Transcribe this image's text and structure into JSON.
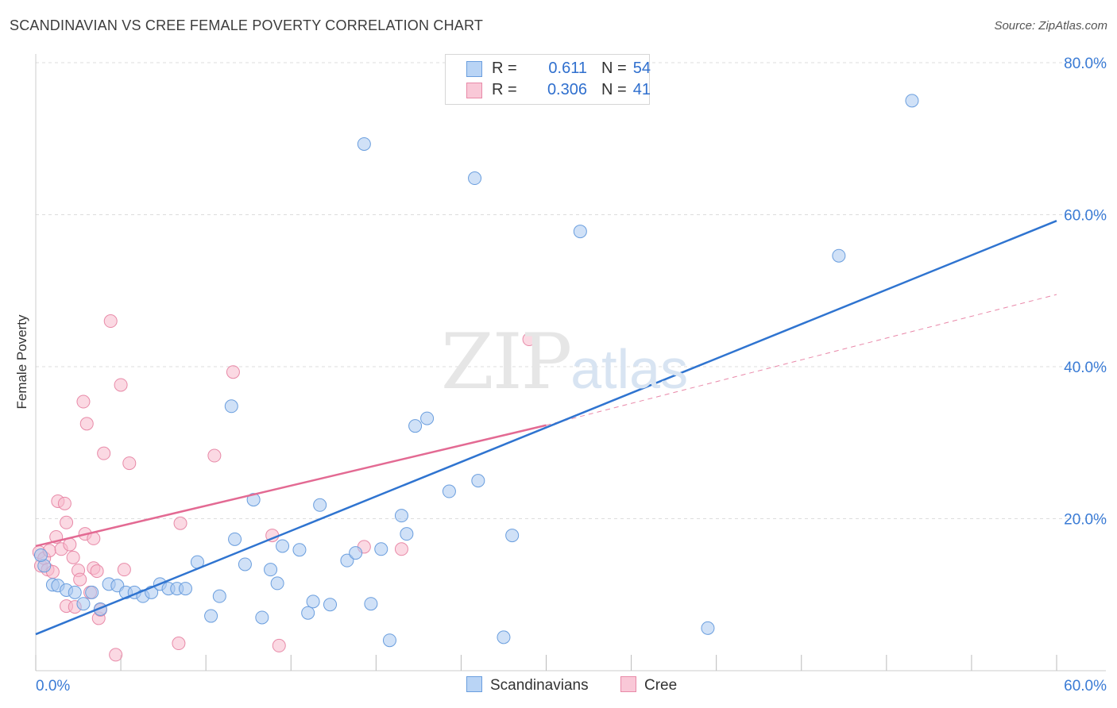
{
  "header": {
    "title": "SCANDINAVIAN VS CREE FEMALE POVERTY CORRELATION CHART",
    "source": "Source: ZipAtlas.com"
  },
  "watermark": {
    "zip": "ZIP",
    "atlas": "atlas"
  },
  "legend": {
    "rows": [
      {
        "r_label": "R =",
        "r_value": "0.611",
        "n_label": "N =",
        "n_value": "54"
      },
      {
        "r_label": "R =",
        "r_value": "0.306",
        "n_label": "N =",
        "n_value": "41"
      }
    ]
  },
  "bottom_legend": {
    "scandinavians": "Scandinavians",
    "cree": "Cree"
  },
  "colors": {
    "scandinavian_fill": "#a9c8f0",
    "scandinavian_stroke": "#6a9ede",
    "scandinavian_line": "#2f74d0",
    "cree_fill": "#f7b9cc",
    "cree_stroke": "#e88aa8",
    "cree_line": "#e36a93",
    "tick_label": "#3a7bd5",
    "grid": "#dddddd"
  },
  "chart_data": {
    "type": "scatter",
    "title": "SCANDINAVIAN VS CREE FEMALE POVERTY CORRELATION CHART",
    "xlabel": "",
    "ylabel": "Female Poverty",
    "xlim": [
      0,
      60
    ],
    "ylim": [
      0,
      80
    ],
    "x_tick_labels": [
      "0.0%",
      "60.0%"
    ],
    "y_ticks": [
      20,
      40,
      60,
      80
    ],
    "y_tick_labels": [
      "20.0%",
      "40.0%",
      "60.0%",
      "80.0%"
    ],
    "grid": true,
    "legend_position": "top-center",
    "series": [
      {
        "name": "Scandinavians",
        "stats": {
          "R": 0.611,
          "N": 54
        },
        "trend": {
          "x0": 0,
          "y0": 4.8,
          "x1": 60,
          "y1": 59.2,
          "extended_x1": 60
        },
        "points": [
          [
            0.5,
            13.8
          ],
          [
            1.0,
            11.3
          ],
          [
            1.3,
            11.2
          ],
          [
            1.8,
            10.6
          ],
          [
            2.3,
            10.3
          ],
          [
            2.8,
            8.8
          ],
          [
            3.3,
            10.3
          ],
          [
            3.8,
            8.1
          ],
          [
            4.3,
            11.4
          ],
          [
            4.8,
            11.2
          ],
          [
            5.3,
            10.3
          ],
          [
            5.8,
            10.3
          ],
          [
            6.3,
            9.8
          ],
          [
            6.8,
            10.3
          ],
          [
            7.3,
            11.4
          ],
          [
            7.8,
            10.8
          ],
          [
            8.3,
            10.8
          ],
          [
            8.8,
            10.8
          ],
          [
            9.5,
            14.3
          ],
          [
            10.3,
            7.2
          ],
          [
            10.8,
            9.8
          ],
          [
            11.5,
            34.8
          ],
          [
            11.7,
            17.3
          ],
          [
            12.3,
            14.0
          ],
          [
            12.8,
            22.5
          ],
          [
            13.3,
            7.0
          ],
          [
            13.8,
            13.3
          ],
          [
            14.2,
            11.5
          ],
          [
            14.5,
            16.4
          ],
          [
            15.5,
            15.9
          ],
          [
            16.0,
            7.6
          ],
          [
            16.3,
            9.1
          ],
          [
            16.7,
            21.8
          ],
          [
            17.3,
            8.7
          ],
          [
            18.3,
            14.5
          ],
          [
            18.8,
            15.5
          ],
          [
            19.3,
            69.3
          ],
          [
            19.7,
            8.8
          ],
          [
            20.3,
            16.0
          ],
          [
            20.8,
            4.0
          ],
          [
            21.5,
            20.4
          ],
          [
            21.8,
            18.0
          ],
          [
            22.3,
            32.2
          ],
          [
            23.0,
            33.2
          ],
          [
            24.3,
            23.6
          ],
          [
            25.8,
            64.8
          ],
          [
            26.0,
            25.0
          ],
          [
            27.5,
            4.4
          ],
          [
            28.0,
            17.8
          ],
          [
            32.0,
            57.8
          ],
          [
            39.5,
            5.6
          ],
          [
            47.2,
            54.6
          ],
          [
            51.5,
            75.0
          ],
          [
            0.3,
            15.2
          ]
        ]
      },
      {
        "name": "Cree",
        "stats": {
          "R": 0.306,
          "N": 41
        },
        "trend": {
          "x0": 0,
          "y0": 16.4,
          "x1": 30,
          "y1": 32.3,
          "extended_x1": 60,
          "extended_y1": 49.5
        },
        "points": [
          [
            0.2,
            15.6
          ],
          [
            0.3,
            13.8
          ],
          [
            0.5,
            14.8
          ],
          [
            0.7,
            13.3
          ],
          [
            0.8,
            15.8
          ],
          [
            1.0,
            13.0
          ],
          [
            1.2,
            17.6
          ],
          [
            1.3,
            22.3
          ],
          [
            1.5,
            16.0
          ],
          [
            1.7,
            22.0
          ],
          [
            1.8,
            8.5
          ],
          [
            1.8,
            19.5
          ],
          [
            2.0,
            16.6
          ],
          [
            2.2,
            14.9
          ],
          [
            2.3,
            8.4
          ],
          [
            2.5,
            13.2
          ],
          [
            2.6,
            12.0
          ],
          [
            2.8,
            35.4
          ],
          [
            2.9,
            18.0
          ],
          [
            3.0,
            32.5
          ],
          [
            3.2,
            10.3
          ],
          [
            3.4,
            17.4
          ],
          [
            3.4,
            13.5
          ],
          [
            3.6,
            13.1
          ],
          [
            3.7,
            6.9
          ],
          [
            3.8,
            8.0
          ],
          [
            4.0,
            28.6
          ],
          [
            4.4,
            46.0
          ],
          [
            4.7,
            2.1
          ],
          [
            5.0,
            37.6
          ],
          [
            5.2,
            13.3
          ],
          [
            5.5,
            27.3
          ],
          [
            8.4,
            3.6
          ],
          [
            8.5,
            19.4
          ],
          [
            10.5,
            28.3
          ],
          [
            11.6,
            39.3
          ],
          [
            13.9,
            17.8
          ],
          [
            14.3,
            3.3
          ],
          [
            19.3,
            16.3
          ],
          [
            21.5,
            16.0
          ],
          [
            29.0,
            43.6
          ]
        ]
      }
    ]
  }
}
